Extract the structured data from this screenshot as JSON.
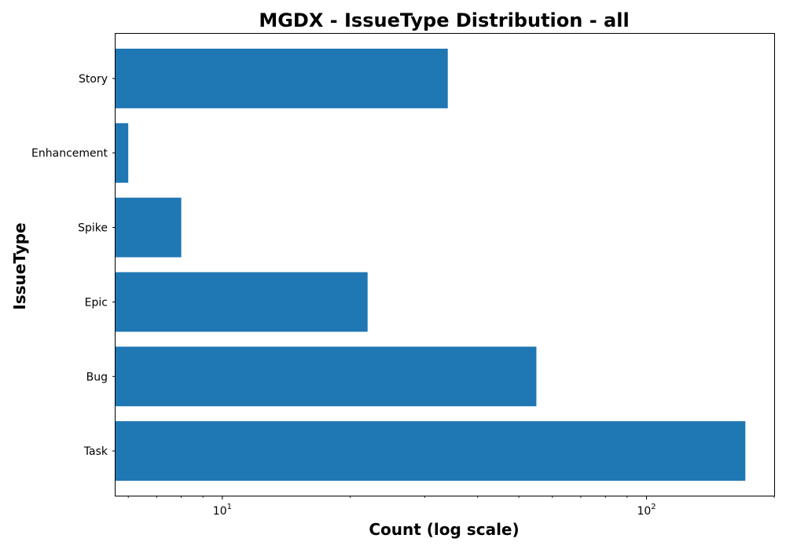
{
  "chart_data": {
    "type": "bar",
    "orientation": "horizontal",
    "title": "MGDX - IssueType Distribution - all",
    "xlabel": "Count (log scale)",
    "ylabel": "IssueType",
    "xscale": "log",
    "xlim": [
      5.6,
      200
    ],
    "x_ticks": [
      {
        "value": 10,
        "base": "10",
        "exp": "1"
      },
      {
        "value": 100,
        "base": "10",
        "exp": "2"
      }
    ],
    "categories": [
      "Task",
      "Bug",
      "Epic",
      "Spike",
      "Enhancement",
      "Story"
    ],
    "values": [
      171,
      55,
      22,
      8,
      6,
      34
    ],
    "bar_color": "#1f77b4",
    "grid": false,
    "legend": "none"
  }
}
